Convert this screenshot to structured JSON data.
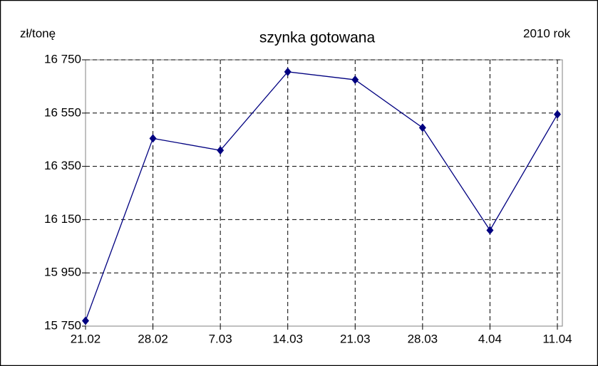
{
  "chart_data": {
    "type": "line",
    "title": "szynka gotowana",
    "y_label": "zł/tonę",
    "annotation": "2010 rok",
    "categories": [
      "21.02",
      "28.02",
      "7.03",
      "14.03",
      "21.03",
      "28.03",
      "4.04",
      "11.04"
    ],
    "series": [
      {
        "name": "szynka gotowana",
        "color": "#000080",
        "values": [
          15770,
          16455,
          16410,
          16705,
          16675,
          16495,
          16110,
          16545
        ]
      }
    ],
    "ylim": [
      15750,
      16750
    ],
    "yticks": [
      {
        "value": 15750,
        "label": "15 750"
      },
      {
        "value": 15950,
        "label": "15 950"
      },
      {
        "value": 16150,
        "label": "16 150"
      },
      {
        "value": 16350,
        "label": "16 350"
      },
      {
        "value": 16550,
        "label": "16 550"
      },
      {
        "value": 16750,
        "label": "16 750"
      }
    ],
    "grid": true
  }
}
